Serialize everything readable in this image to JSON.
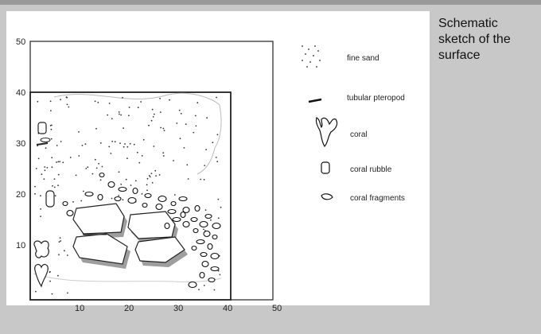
{
  "caption": {
    "line1": "Schematic",
    "line2": "sketch of the",
    "line3": "surface"
  },
  "axes": {
    "x_ticks": [
      "10",
      "20",
      "30",
      "40",
      "50"
    ],
    "y_ticks": [
      "10",
      "20",
      "30",
      "40",
      "50"
    ]
  },
  "legend": {
    "fine_sand": "fine sand",
    "tubular_pteropod": "tubular pteropod",
    "coral": "coral",
    "coral_rubble": "coral rubble",
    "coral_fragments": "coral fragments"
  },
  "colors": {
    "background": "#c8c8c8",
    "card": "#ffffff",
    "ink": "#111111",
    "shadow": "#9e9e9e"
  }
}
